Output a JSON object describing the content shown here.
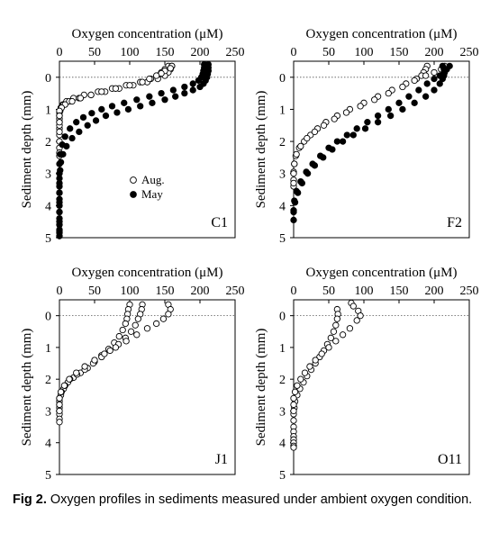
{
  "figure": {
    "caption_label": "Fig 2.",
    "caption_text": "Oxygen profiles in sediments measured under ambient oxygen condition."
  },
  "legend": {
    "aug": "Aug.",
    "may": "May"
  },
  "colors": {
    "aug_fill": "#ffffff",
    "may_fill": "#000000",
    "marker_edge": "#000000"
  },
  "chart_data": [
    {
      "type": "scatter",
      "panel": "C1",
      "title": "C1",
      "xlabel": "Oxygen concentration (μM)",
      "ylabel": "Sediment depth (mm)",
      "xlim": [
        0,
        250
      ],
      "ylim": [
        5,
        -0.5
      ],
      "xticks": [
        0,
        50,
        100,
        150,
        200,
        250
      ],
      "yticks": [
        0,
        1,
        2,
        3,
        4,
        5
      ],
      "series": [
        {
          "name": "Aug.",
          "marker": "open-circle",
          "profiles": [
            {
              "x": [
                155,
                150,
                145,
                140,
                130,
                115,
                95,
                75,
                55,
                35,
                20,
                10,
                5,
                2,
                1,
                0,
                0,
                0,
                0,
                0,
                0,
                0,
                0
              ],
              "y": [
                -0.35,
                -0.25,
                -0.15,
                -0.05,
                0.05,
                0.15,
                0.25,
                0.35,
                0.45,
                0.55,
                0.65,
                0.75,
                0.85,
                0.95,
                1.05,
                1.2,
                1.4,
                1.6,
                1.8,
                2.0,
                2.2,
                2.35,
                2.45
              ]
            },
            {
              "x": [
                160,
                158,
                155,
                150,
                140,
                125,
                105,
                85,
                65,
                45,
                28,
                14,
                6,
                2,
                0,
                0,
                0,
                0
              ],
              "y": [
                -0.35,
                -0.25,
                -0.15,
                -0.05,
                0.05,
                0.15,
                0.25,
                0.35,
                0.45,
                0.55,
                0.65,
                0.75,
                0.85,
                0.95,
                1.1,
                1.3,
                1.5,
                1.7
              ]
            },
            {
              "x": [
                160,
                158,
                150,
                145,
                138,
                128,
                118,
                100,
                80,
                60,
                45,
                30,
                18,
                8,
                3,
                0,
                0,
                0
              ],
              "y": [
                -0.35,
                -0.28,
                -0.2,
                -0.12,
                -0.05,
                0.05,
                0.15,
                0.25,
                0.35,
                0.45,
                0.55,
                0.65,
                0.75,
                0.85,
                0.95,
                1.05,
                1.2,
                1.4
              ]
            }
          ]
        },
        {
          "name": "May",
          "marker": "filled-circle",
          "profiles": [
            {
              "x": [
                212,
                212,
                212,
                211,
                210,
                208,
                205,
                200,
                190,
                178,
                165,
                150,
                132,
                115,
                98,
                82,
                66,
                52,
                40,
                28,
                18,
                10,
                5,
                2,
                1,
                0,
                0,
                0,
                0,
                0,
                0,
                0,
                0,
                0,
                0,
                0
              ],
              "y": [
                -0.4,
                -0.3,
                -0.2,
                -0.1,
                0.0,
                0.1,
                0.2,
                0.3,
                0.4,
                0.5,
                0.6,
                0.7,
                0.8,
                0.9,
                1.0,
                1.1,
                1.2,
                1.35,
                1.5,
                1.7,
                1.9,
                2.15,
                2.4,
                2.65,
                2.9,
                3.15,
                3.4,
                3.6,
                3.8,
                4.0,
                4.2,
                4.4,
                4.6,
                4.75,
                4.85,
                4.95
              ]
            },
            {
              "x": [
                206,
                206,
                205,
                204,
                202,
                198,
                190,
                178,
                162,
                145,
                128,
                110,
                92,
                75,
                60,
                46,
                34,
                24,
                15,
                8,
                4,
                1,
                0,
                0,
                0,
                0,
                0,
                0,
                0,
                0
              ],
              "y": [
                -0.4,
                -0.3,
                -0.2,
                -0.1,
                0.0,
                0.1,
                0.2,
                0.3,
                0.4,
                0.5,
                0.6,
                0.7,
                0.8,
                0.9,
                1.0,
                1.12,
                1.25,
                1.4,
                1.6,
                1.85,
                2.1,
                2.4,
                2.7,
                3.0,
                3.3,
                3.6,
                3.9,
                4.2,
                4.5,
                4.8
              ]
            }
          ]
        }
      ]
    },
    {
      "type": "scatter",
      "panel": "F2",
      "title": "F2",
      "xlabel": "Oxygen concentration (μM)",
      "ylabel": "Sediment depth (mm)",
      "xlim": [
        0,
        250
      ],
      "ylim": [
        5,
        -0.5
      ],
      "xticks": [
        0,
        50,
        100,
        150,
        200,
        250
      ],
      "yticks": [
        0,
        1,
        2,
        3,
        4,
        5
      ],
      "series": [
        {
          "name": "Aug.",
          "marker": "open-circle",
          "profiles": [
            {
              "x": [
                190,
                188,
                185,
                182,
                175,
                160,
                140,
                120,
                100,
                80,
                62,
                46,
                34,
                24,
                15,
                8,
                3,
                1,
                0,
                0,
                0
              ],
              "y": [
                -0.35,
                -0.25,
                -0.15,
                -0.05,
                0.05,
                0.2,
                0.4,
                0.6,
                0.8,
                1.0,
                1.2,
                1.4,
                1.6,
                1.8,
                2.0,
                2.2,
                2.45,
                2.7,
                2.95,
                3.2,
                3.4
              ]
            },
            {
              "x": [
                215,
                210,
                200,
                188,
                172,
                155,
                135,
                115,
                95,
                75,
                58,
                43,
                30,
                19,
                10,
                4,
                1,
                0,
                0
              ],
              "y": [
                -0.35,
                -0.25,
                -0.15,
                -0.05,
                0.1,
                0.3,
                0.5,
                0.7,
                0.9,
                1.1,
                1.3,
                1.5,
                1.7,
                1.9,
                2.15,
                2.4,
                2.7,
                3.0,
                3.3
              ]
            }
          ]
        },
        {
          "name": "May",
          "marker": "filled-circle",
          "profiles": [
            {
              "x": [
                222,
                218,
                214,
                208,
                200,
                190,
                178,
                164,
                150,
                135,
                120,
                105,
                90,
                76,
                62,
                50,
                38,
                27,
                18,
                10,
                4,
                1,
                0
              ],
              "y": [
                -0.35,
                -0.25,
                -0.15,
                -0.05,
                0.05,
                0.2,
                0.4,
                0.6,
                0.8,
                1.0,
                1.2,
                1.4,
                1.6,
                1.8,
                2.0,
                2.2,
                2.45,
                2.7,
                2.95,
                3.25,
                3.55,
                3.85,
                4.15
              ]
            },
            {
              "x": [
                212,
                214,
                215,
                214,
                212,
                208,
                200,
                188,
                172,
                155,
                138,
                120,
                102,
                85,
                70,
                55,
                42,
                30,
                20,
                12,
                6,
                2,
                0,
                0
              ],
              "y": [
                -0.35,
                -0.25,
                -0.15,
                -0.05,
                0.05,
                0.2,
                0.4,
                0.6,
                0.8,
                1.0,
                1.2,
                1.4,
                1.6,
                1.8,
                2.0,
                2.25,
                2.5,
                2.75,
                3.0,
                3.3,
                3.6,
                3.9,
                4.2,
                4.45
              ]
            }
          ]
        }
      ]
    },
    {
      "type": "scatter",
      "panel": "J1",
      "title": "J1",
      "xlabel": "Oxygen concentration (μM)",
      "ylabel": "Sediment depth (mm)",
      "xlim": [
        0,
        250
      ],
      "ylim": [
        5,
        -0.5
      ],
      "xticks": [
        0,
        50,
        100,
        150,
        200,
        250
      ],
      "yticks": [
        0,
        1,
        2,
        3,
        4,
        5
      ],
      "series": [
        {
          "name": "Aug.",
          "marker": "open-circle",
          "profiles": [
            {
              "x": [
                100,
                98,
                97,
                96,
                94,
                90,
                85,
                78,
                70,
                60,
                50,
                40,
                30,
                20,
                12,
                6,
                2,
                0,
                0,
                0,
                0,
                0
              ],
              "y": [
                -0.35,
                -0.2,
                -0.05,
                0.1,
                0.25,
                0.45,
                0.65,
                0.85,
                1.05,
                1.25,
                1.45,
                1.65,
                1.8,
                1.95,
                2.1,
                2.3,
                2.5,
                2.7,
                2.9,
                3.1,
                3.25,
                3.35
              ]
            },
            {
              "x": [
                118,
                117,
                115,
                112,
                108,
                102,
                94,
                84,
                72,
                60,
                48,
                36,
                25,
                15,
                8,
                3,
                0,
                0,
                0
              ],
              "y": [
                -0.35,
                -0.2,
                -0.05,
                0.1,
                0.3,
                0.5,
                0.7,
                0.9,
                1.1,
                1.3,
                1.5,
                1.7,
                1.85,
                2.0,
                2.2,
                2.4,
                2.6,
                2.8,
                3.0
              ]
            },
            {
              "x": [
                155,
                158,
                155,
                148,
                138,
                125,
                110,
                95,
                80,
                64,
                50,
                36,
                24,
                14,
                7,
                2,
                0,
                0
              ],
              "y": [
                -0.35,
                -0.2,
                -0.05,
                0.1,
                0.25,
                0.4,
                0.6,
                0.8,
                1.0,
                1.2,
                1.4,
                1.6,
                1.8,
                2.0,
                2.2,
                2.4,
                2.6,
                2.8
              ]
            }
          ]
        }
      ]
    },
    {
      "type": "scatter",
      "panel": "O11",
      "title": "O11",
      "xlabel": "Oxygen concentration (μM)",
      "ylabel": "Sediment depth (mm)",
      "xlim": [
        0,
        250
      ],
      "ylim": [
        5,
        -0.5
      ],
      "xticks": [
        0,
        50,
        100,
        150,
        200,
        250
      ],
      "yticks": [
        0,
        1,
        2,
        3,
        4,
        5
      ],
      "series": [
        {
          "name": "Aug.",
          "marker": "open-circle",
          "profiles": [
            {
              "x": [
                62,
                63,
                62,
                60,
                57,
                53,
                48,
                43,
                37,
                31,
                25,
                19,
                14,
                9,
                5,
                2,
                1,
                0,
                0,
                0,
                0,
                0,
                0,
                0,
                0,
                0
              ],
              "y": [
                -0.2,
                -0.05,
                0.1,
                0.3,
                0.5,
                0.7,
                0.9,
                1.1,
                1.3,
                1.5,
                1.7,
                1.9,
                2.1,
                2.3,
                2.5,
                2.7,
                2.9,
                3.1,
                3.3,
                3.5,
                3.65,
                3.8,
                3.9,
                4.0,
                4.1,
                4.15
              ]
            },
            {
              "x": [
                82,
                85,
                92,
                95,
                90,
                80,
                70,
                60,
                50,
                40,
                31,
                23,
                16,
                10,
                5,
                2,
                0,
                0,
                0
              ],
              "y": [
                -0.4,
                -0.3,
                -0.15,
                0.0,
                0.15,
                0.4,
                0.6,
                0.8,
                1.0,
                1.2,
                1.4,
                1.6,
                1.8,
                2.0,
                2.2,
                2.4,
                2.6,
                2.8,
                3.0
              ]
            }
          ]
        }
      ]
    }
  ]
}
